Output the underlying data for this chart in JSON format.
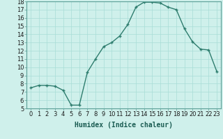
{
  "xlabel": "Humidex (Indice chaleur)",
  "x": [
    0,
    1,
    2,
    3,
    4,
    5,
    6,
    7,
    8,
    9,
    10,
    11,
    12,
    13,
    14,
    15,
    16,
    17,
    18,
    19,
    20,
    21,
    22,
    23
  ],
  "y": [
    7.5,
    7.8,
    7.8,
    7.7,
    7.2,
    5.4,
    5.4,
    9.4,
    11.0,
    12.5,
    13.0,
    13.8,
    15.2,
    17.3,
    17.9,
    17.9,
    17.8,
    17.3,
    17.0,
    14.7,
    13.1,
    12.2,
    12.1,
    9.5
  ],
  "line_color": "#2e7d6e",
  "marker": "+",
  "bg_color": "#cff0eb",
  "grid_color": "#a8ddd6",
  "ylim": [
    5,
    18
  ],
  "yticks": [
    5,
    6,
    7,
    8,
    9,
    10,
    11,
    12,
    13,
    14,
    15,
    16,
    17,
    18
  ],
  "xticks": [
    0,
    1,
    2,
    3,
    4,
    5,
    6,
    7,
    8,
    9,
    10,
    11,
    12,
    13,
    14,
    15,
    16,
    17,
    18,
    19,
    20,
    21,
    22,
    23
  ],
  "tick_label_fontsize": 6,
  "xlabel_fontsize": 7,
  "markersize": 3.5,
  "linewidth": 1.0
}
